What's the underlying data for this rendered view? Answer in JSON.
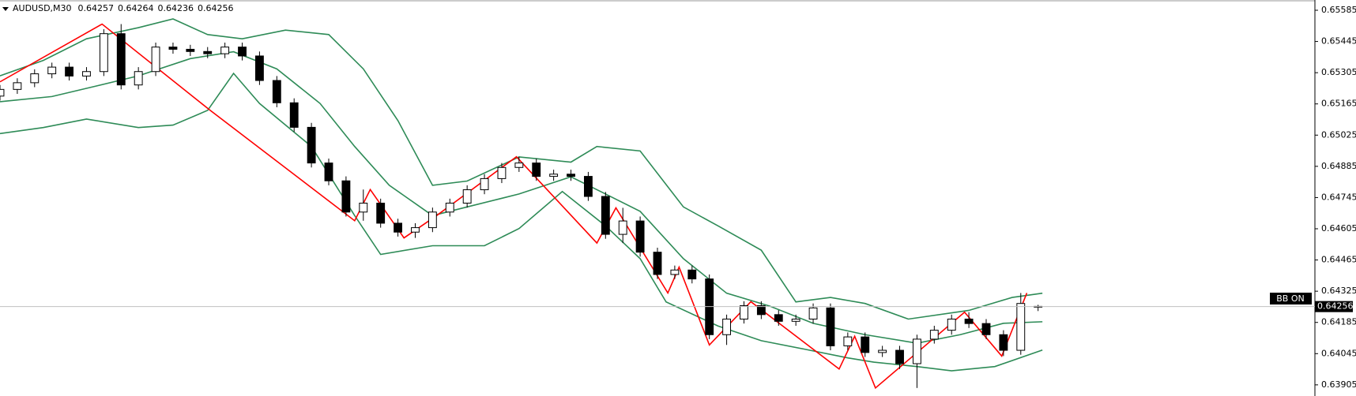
{
  "chart_data": {
    "type": "candlestick",
    "title": "AUDUSD,M30",
    "annotation": "BB ON",
    "ylim": [
      0.63855,
      0.65631
    ],
    "xlim": [
      0,
      76
    ],
    "yticks": [
      0.65585,
      0.65445,
      0.65305,
      0.65165,
      0.65025,
      0.64885,
      0.64745,
      0.64605,
      0.64465,
      0.64325,
      0.64185,
      0.64045,
      0.63905
    ],
    "up_color": "#ffffff",
    "down_color": "#000000",
    "wick_color": "#000000",
    "open": [
      0.652,
      0.6523,
      0.6526,
      0.653,
      0.6533,
      0.6529,
      0.6531,
      0.6548,
      0.6525,
      0.6531,
      0.6542,
      0.6541,
      0.654,
      0.6539,
      0.6542,
      0.6538,
      0.6527,
      0.6517,
      0.6506,
      0.649,
      0.6482,
      0.6468,
      0.6472,
      0.6463,
      0.6459,
      0.6461,
      0.6468,
      0.6472,
      0.6478,
      0.6483,
      0.6488,
      0.649,
      0.6484,
      0.6485,
      0.6484,
      0.6475,
      0.6458,
      0.6464,
      0.645,
      0.644,
      0.6442,
      0.6438,
      0.6413,
      0.642,
      0.6426,
      0.6422,
      0.6419,
      0.642,
      0.6425,
      0.6408,
      0.6412,
      0.6405,
      0.6406,
      0.64,
      0.6411,
      0.6415,
      0.642,
      0.6418,
      0.6413,
      0.6406,
      0.64257
    ],
    "high": [
      0.6525,
      0.6528,
      0.6532,
      0.6535,
      0.6535,
      0.6533,
      0.655,
      0.65523,
      0.6533,
      0.6544,
      0.6544,
      0.6543,
      0.6542,
      0.6544,
      0.6544,
      0.654,
      0.6529,
      0.6519,
      0.6508,
      0.6492,
      0.6484,
      0.64781,
      0.6474,
      0.6465,
      0.6463,
      0.647,
      0.6474,
      0.648,
      0.6485,
      0.649,
      0.64928,
      0.6492,
      0.6487,
      0.6487,
      0.6486,
      0.6477,
      0.64699,
      0.6466,
      0.6452,
      0.6444,
      0.6444,
      0.644,
      0.6422,
      0.6428,
      0.6428,
      0.6424,
      0.6422,
      0.6427,
      0.6427,
      0.6414,
      0.6414,
      0.6408,
      0.6408,
      0.6413,
      0.6417,
      0.6422,
      0.64231,
      0.642,
      0.6415,
      0.64317,
      0.64264
    ],
    "low": [
      0.6518,
      0.6521,
      0.6524,
      0.6528,
      0.6527,
      0.6527,
      0.6529,
      0.6523,
      0.6523,
      0.6529,
      0.6539,
      0.6538,
      0.6537,
      0.6537,
      0.6536,
      0.6525,
      0.6515,
      0.6504,
      0.6488,
      0.648,
      0.6466,
      0.64641,
      0.6461,
      0.6457,
      0.64564,
      0.6459,
      0.6466,
      0.647,
      0.6476,
      0.6481,
      0.6486,
      0.6482,
      0.6482,
      0.6482,
      0.6473,
      0.6456,
      0.64541,
      0.6448,
      0.6438,
      0.6438,
      0.6436,
      0.6411,
      0.64084,
      0.6418,
      0.642,
      0.6417,
      0.6417,
      0.6418,
      0.6406,
      0.6406,
      0.6403,
      0.6403,
      0.63976,
      0.63891,
      0.6409,
      0.6413,
      0.6416,
      0.6411,
      0.64034,
      0.6404,
      0.64236
    ],
    "close": [
      0.6523,
      0.6526,
      0.653,
      0.6533,
      0.6529,
      0.6531,
      0.6548,
      0.6525,
      0.6531,
      0.6542,
      0.6541,
      0.654,
      0.6539,
      0.6542,
      0.6538,
      0.6527,
      0.6517,
      0.6506,
      0.649,
      0.6482,
      0.6468,
      0.6472,
      0.6463,
      0.6459,
      0.6461,
      0.6468,
      0.6472,
      0.6478,
      0.6483,
      0.6488,
      0.649,
      0.6484,
      0.6485,
      0.6484,
      0.6475,
      0.6458,
      0.6464,
      0.645,
      0.644,
      0.6442,
      0.6438,
      0.6413,
      0.642,
      0.6426,
      0.6422,
      0.6419,
      0.642,
      0.6425,
      0.6408,
      0.6412,
      0.6405,
      0.6406,
      0.64,
      0.6411,
      0.6415,
      0.642,
      0.6418,
      0.6413,
      0.6406,
      0.6427,
      0.64256
    ],
    "series": [
      {
        "color": "#2e8b57",
        "x": [
          0,
          2.5,
          5,
          8,
          10,
          12,
          14,
          16.5,
          19,
          21,
          23,
          25,
          27,
          30,
          33,
          34.5,
          37,
          39.5,
          41.5,
          44,
          46,
          48,
          50,
          52.5,
          56,
          58.5,
          60.25
        ],
        "values": [
          0.65291,
          0.6536,
          0.65457,
          0.65507,
          0.65546,
          0.65476,
          0.65457,
          0.65496,
          0.65476,
          0.65322,
          0.6509,
          0.648,
          0.64819,
          0.64927,
          0.64904,
          0.64974,
          0.64954,
          0.64703,
          0.64618,
          0.64509,
          0.64277,
          0.64297,
          0.6427,
          0.642,
          0.64239,
          0.64297,
          0.64316
        ]
      },
      {
        "color": "#2e8b57",
        "x": [
          0,
          3,
          5.5,
          8,
          11,
          13.5,
          16,
          18.5,
          20.5,
          22.5,
          25,
          27,
          30,
          33,
          35,
          37,
          39.5,
          42,
          44.5,
          47,
          50,
          53,
          55.5,
          58,
          60.25
        ],
        "values": [
          0.65175,
          0.65198,
          0.65244,
          0.65291,
          0.65368,
          0.65399,
          0.65322,
          0.65167,
          0.64974,
          0.648,
          0.64664,
          0.64703,
          0.64761,
          0.64838,
          0.64761,
          0.64683,
          0.64471,
          0.64316,
          0.64258,
          0.64181,
          0.6413,
          0.64092,
          0.6413,
          0.64181,
          0.64188
        ]
      },
      {
        "color": "#2e8b57",
        "x": [
          0,
          2.5,
          5,
          8,
          10,
          12,
          13.5,
          15,
          18,
          20.5,
          22,
          25,
          28,
          30,
          32.5,
          35,
          37,
          38.5,
          41.5,
          44,
          46.5,
          49,
          50.5,
          53,
          55,
          57.5,
          60.25
        ],
        "values": [
          0.65032,
          0.65059,
          0.65097,
          0.65059,
          0.6507,
          0.65136,
          0.65302,
          0.65167,
          0.64974,
          0.64664,
          0.6449,
          0.64529,
          0.64529,
          0.64606,
          0.64772,
          0.64618,
          0.64471,
          0.64277,
          0.64169,
          0.64103,
          0.64065,
          0.64026,
          0.64007,
          0.63987,
          0.63968,
          0.63987,
          0.64061
        ]
      },
      {
        "color": "#ff0000",
        "x": [
          0,
          5.9,
          12.15,
          20.5,
          21.4,
          23.35,
          25.25,
          29.85,
          34.5,
          35.6,
          38.6,
          39.25,
          41,
          43.4,
          48.5,
          49.4,
          50.6,
          55.75,
          57.9,
          59.35
        ],
        "values": [
          0.65264,
          0.65523,
          0.65136,
          0.64641,
          0.64781,
          0.64564,
          0.64665,
          0.64928,
          0.64541,
          0.64699,
          0.64317,
          0.64433,
          0.64084,
          0.64278,
          0.63976,
          0.64123,
          0.63891,
          0.64231,
          0.64034,
          0.64317
        ]
      }
    ]
  }
}
